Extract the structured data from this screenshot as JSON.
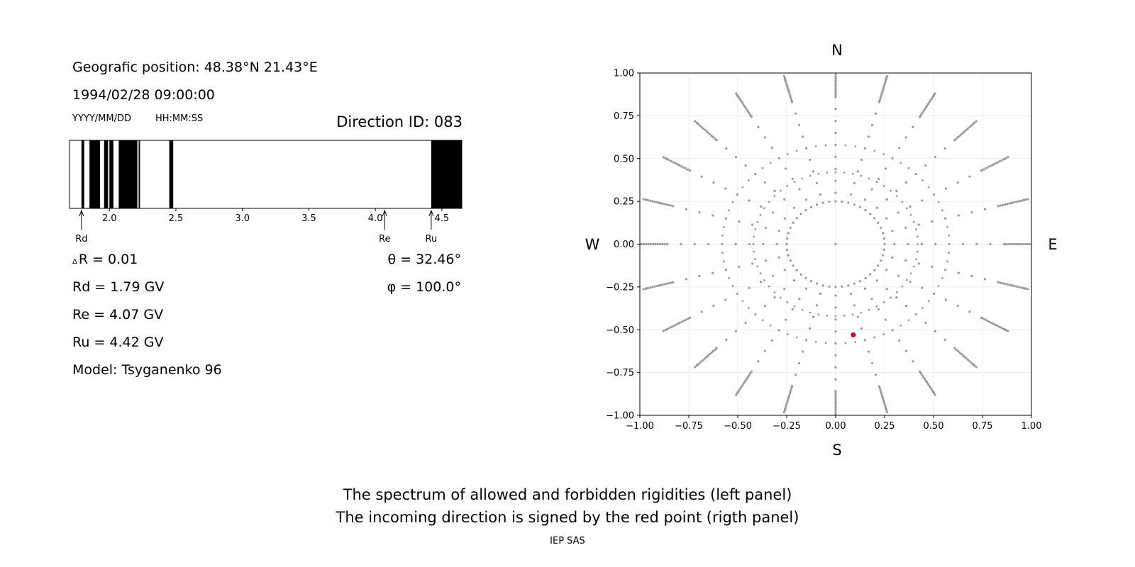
{
  "left_panel": {
    "geo_position": "Geografic position: 48.38°N 21.43°E",
    "datetime": "1994/02/28 09:00:00",
    "date_format": "YYYY/MM/DD",
    "time_format": "HH:MM:SS",
    "direction_id": "Direction ID: 083",
    "delta_r_symbol": "Δ",
    "delta_r": "R = 0.01",
    "rd": "Rd = 1.79 GV",
    "re": "Re = 4.07 GV",
    "ru": "Ru = 4.42 GV",
    "model": "Model: Tsyganenko 96",
    "theta": "θ = 32.46°",
    "phi": "φ = 100.0°"
  },
  "compass": {
    "n": "N",
    "s": "S",
    "w": "W",
    "e": "E"
  },
  "captions": {
    "line1": "The spectrum of allowed and forbidden rigidities (left panel)",
    "line2": "The incoming direction is signed by the red point (rigth panel)",
    "credit": "IEP SAS"
  },
  "colors": {
    "forbidden": "#000000",
    "allowed": "#ffffff",
    "grid_points": "#999999",
    "direction_point": "#e00000"
  },
  "chart_data": [
    {
      "type": "bar",
      "role": "rigidity spectrum",
      "xlim": [
        1.7,
        4.65
      ],
      "xticks": [
        2.0,
        2.5,
        3.0,
        3.5,
        4.0,
        4.5
      ],
      "forbidden_bands": [
        [
          1.79,
          1.81
        ],
        [
          1.85,
          1.93
        ],
        [
          1.96,
          1.99
        ],
        [
          2.0,
          2.03
        ],
        [
          2.07,
          2.21
        ],
        [
          2.22,
          2.23
        ],
        [
          2.45,
          2.48
        ],
        [
          4.42,
          4.65
        ]
      ],
      "markers": [
        {
          "label": "Rd",
          "value": 1.79
        },
        {
          "label": "Re",
          "value": 4.07
        },
        {
          "label": "Ru",
          "value": 4.42
        }
      ]
    },
    {
      "type": "scatter",
      "role": "asymptotic direction grid",
      "xlim": [
        -1.0,
        1.0
      ],
      "ylim": [
        -1.0,
        1.0
      ],
      "xticks": [
        -1.0,
        -0.75,
        -0.5,
        -0.25,
        0.0,
        0.25,
        0.5,
        0.75,
        1.0
      ],
      "yticks": [
        -1.0,
        -0.75,
        -0.5,
        -0.25,
        0.0,
        0.25,
        0.5,
        0.75,
        1.0
      ],
      "grid": true,
      "rings": [
        0.25,
        0.42,
        0.58,
        0.72,
        0.84,
        0.93,
        1.0
      ],
      "spokes": 24,
      "highlight": {
        "x": 0.09,
        "y": -0.53
      }
    }
  ]
}
